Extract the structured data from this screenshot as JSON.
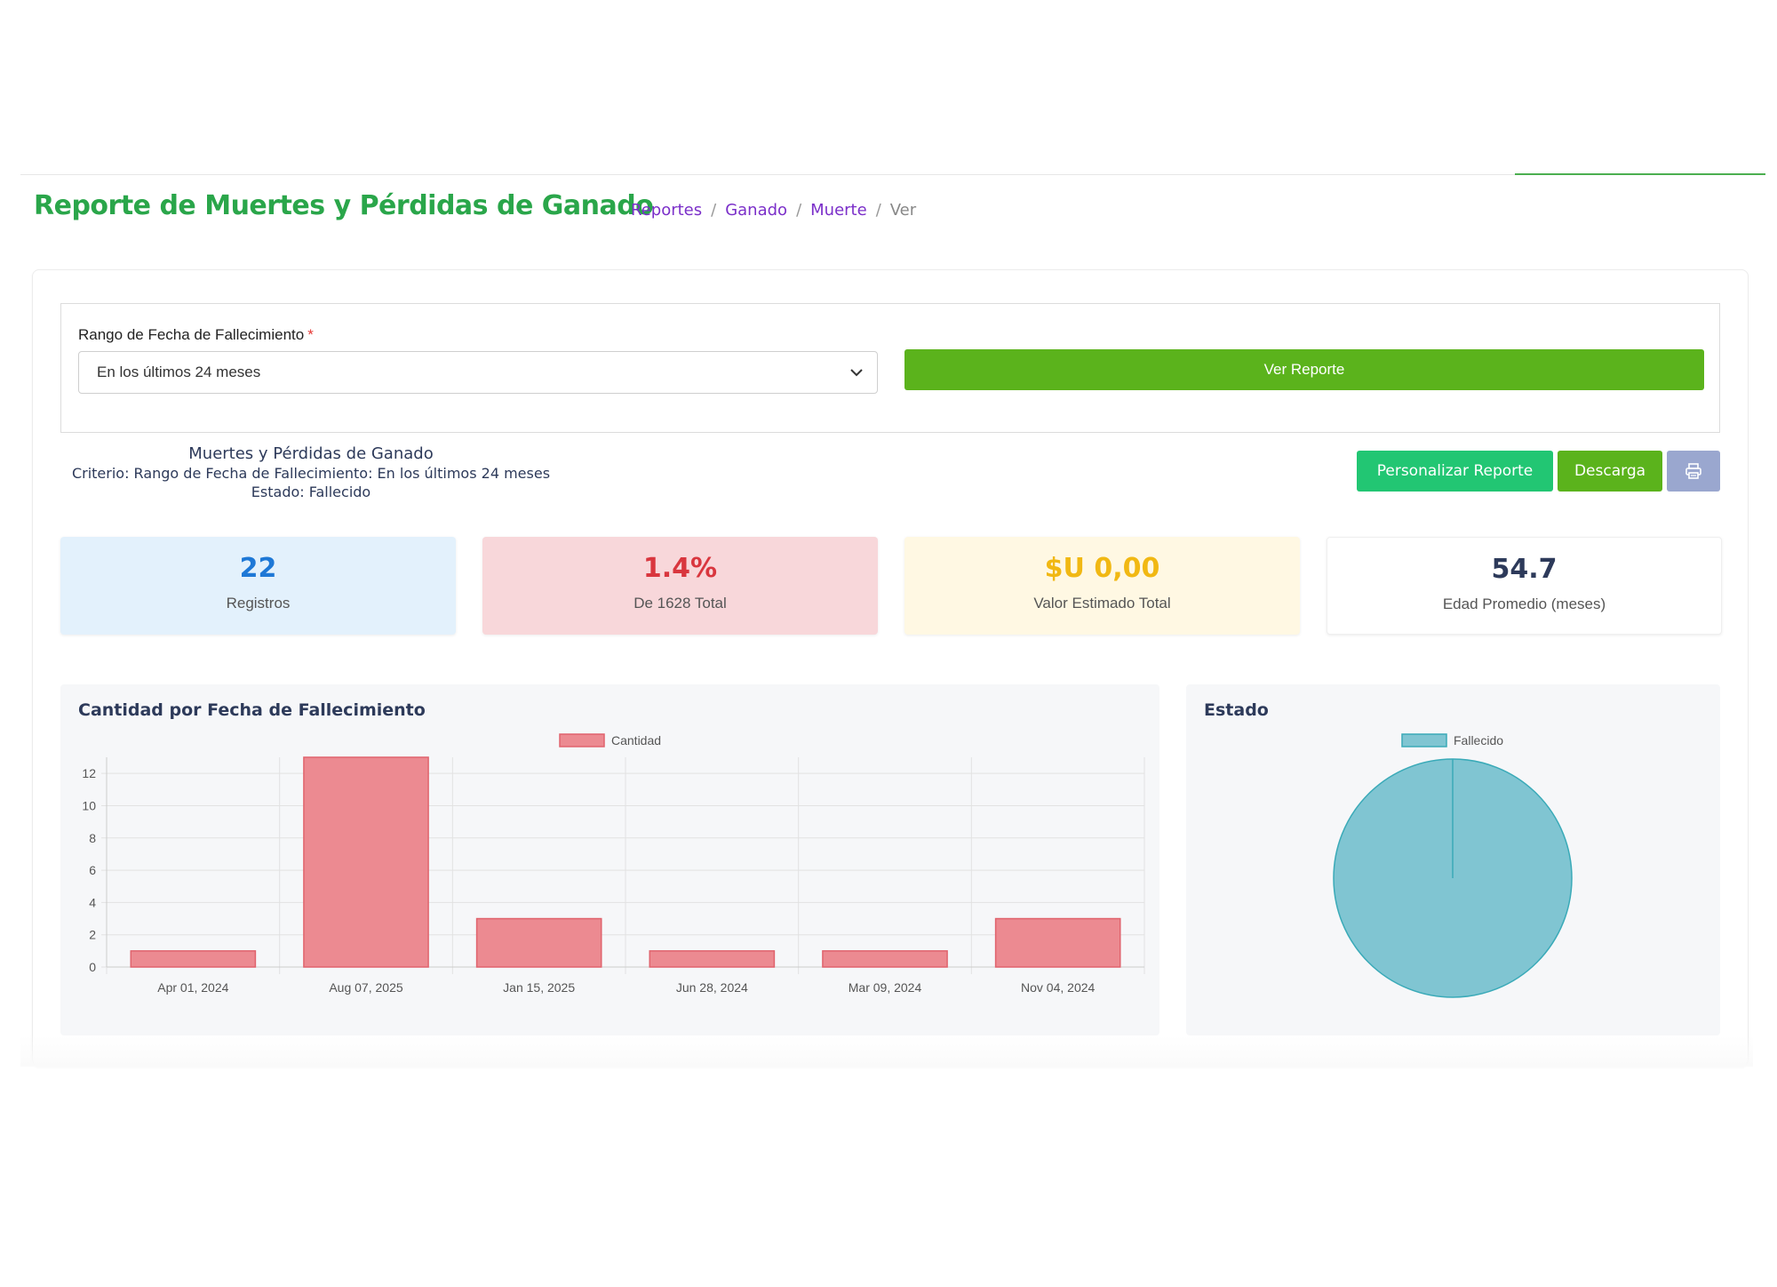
{
  "header": {
    "title": "Reporte de Muertes y Pérdidas de Ganado",
    "breadcrumb": [
      "Reportes",
      "Ganado",
      "Muerte"
    ],
    "breadcrumb_current": "Ver"
  },
  "filter": {
    "label": "Rango de Fecha de Fallecimiento",
    "required_mark": "*",
    "selected": "En los últimos 24 meses",
    "submit_label": "Ver Reporte"
  },
  "report": {
    "name": "Muertes y Pérdidas de Ganado",
    "criteria": "Criterio: Rango de Fecha de Fallecimiento: En los últimos 24 meses",
    "state": "Estado: Fallecido"
  },
  "actions": {
    "customize_label": "Personalizar Reporte",
    "download_label": "Descarga",
    "print_icon": "printer-icon"
  },
  "stats": [
    {
      "value": "22",
      "label": "Registros"
    },
    {
      "value": "1.4%",
      "label": "De 1628 Total"
    },
    {
      "value": "$U 0,00",
      "label": "Valor Estimado Total"
    },
    {
      "value": "54.7",
      "label": "Edad Promedio (meses)"
    }
  ],
  "colors": {
    "brand_green": "#2aa64a",
    "button_green": "#5bb31c",
    "bar_fill": "#ec8a91",
    "bar_stroke": "#e0636d",
    "pie_fill": "#80c5d2",
    "pie_stroke": "#3aaab8"
  },
  "chart_data": [
    {
      "type": "bar",
      "title": "Cantidad por Fecha de Fallecimiento",
      "legend": "Cantidad",
      "categories": [
        "Apr 01, 2024",
        "Aug 07, 2025",
        "Jan 15, 2025",
        "Jun 28, 2024",
        "Mar 09, 2024",
        "Nov 04, 2024"
      ],
      "values": [
        1,
        13,
        3,
        1,
        1,
        3
      ],
      "ylim": [
        0,
        13
      ],
      "yticks": [
        0,
        2,
        4,
        6,
        8,
        10,
        12
      ],
      "grid": true
    },
    {
      "type": "pie",
      "title": "Estado",
      "legend": [
        "Fallecido"
      ],
      "labels": [
        "Fallecido"
      ],
      "values": [
        22
      ]
    }
  ]
}
